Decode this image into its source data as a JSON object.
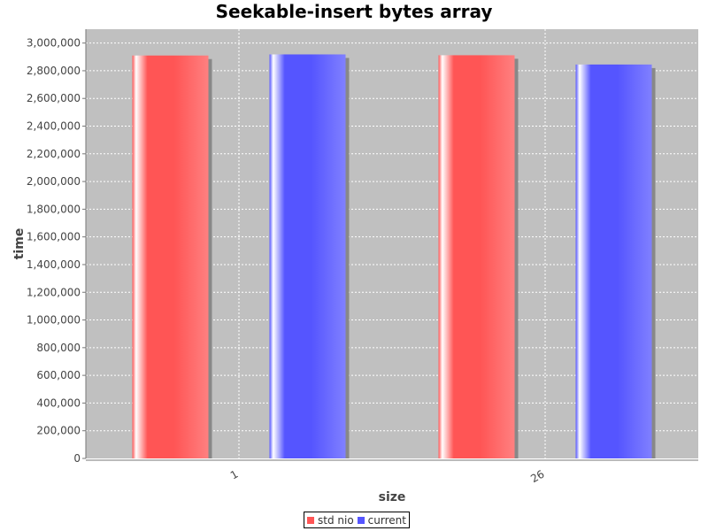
{
  "chart_data": {
    "type": "bar",
    "title": "Seekable-insert bytes array",
    "xlabel": "size",
    "ylabel": "time",
    "categories": [
      "1",
      "26"
    ],
    "series": [
      {
        "name": "std nio",
        "values": [
          2910000,
          2912000
        ],
        "color": "#ff5555"
      },
      {
        "name": "current",
        "values": [
          2918000,
          2845000
        ],
        "color": "#5555ff"
      }
    ],
    "ylim": [
      0,
      3100000
    ],
    "yticks": [
      0,
      200000,
      400000,
      600000,
      800000,
      1000000,
      1200000,
      1400000,
      1600000,
      1800000,
      2000000,
      2200000,
      2400000,
      2600000,
      2800000,
      3000000
    ],
    "grid": true,
    "legend_position": "bottom",
    "plot_background": "#c0c0c0"
  }
}
